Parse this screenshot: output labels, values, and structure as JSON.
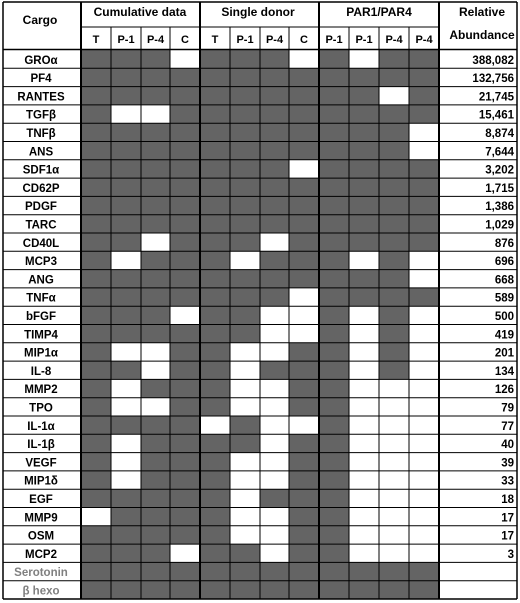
{
  "headers": {
    "cargo": "Cargo",
    "groups": [
      "Cumulative data",
      "Single donor",
      "PAR1/PAR4"
    ],
    "relative": "Relative",
    "abundance": "Abundance",
    "subcolumns": [
      "T",
      "P-1",
      "P-4",
      "C",
      "T",
      "P-1",
      "P-4",
      "C",
      "P-1",
      "P-1",
      "P-4",
      "P-4"
    ]
  },
  "colors": {
    "filled": "#646464",
    "empty": "#ffffff",
    "line": "#000000",
    "grey_text": "#808080"
  },
  "rows": [
    {
      "name": "GROα",
      "cells": "111011101011",
      "abundance": "388,082"
    },
    {
      "name": "PF4",
      "cells": "111111111111",
      "abundance": "132,756"
    },
    {
      "name": "RANTES",
      "cells": "111111111101",
      "abundance": "21,745"
    },
    {
      "name": "TGFβ",
      "cells": "100111111111",
      "abundance": "15,461"
    },
    {
      "name": "TNFβ",
      "cells": "111111111110",
      "abundance": "8,874"
    },
    {
      "name": "ANS",
      "cells": "111111111110",
      "abundance": "7,644"
    },
    {
      "name": "SDF1α",
      "cells": "111111101111",
      "abundance": "3,202"
    },
    {
      "name": "CD62P",
      "cells": "111111111111",
      "abundance": "1,715"
    },
    {
      "name": "PDGF",
      "cells": "111111111111",
      "abundance": "1,386"
    },
    {
      "name": "TARC",
      "cells": "111111111111",
      "abundance": "1,029"
    },
    {
      "name": "CD40L",
      "cells": "110111011111",
      "abundance": "876"
    },
    {
      "name": "MCP3",
      "cells": "101110111010",
      "abundance": "696"
    },
    {
      "name": "ANG",
      "cells": "111111111110",
      "abundance": "668"
    },
    {
      "name": "TNFα",
      "cells": "111111101111",
      "abundance": "589"
    },
    {
      "name": "bFGF",
      "cells": "111011001010",
      "abundance": "500"
    },
    {
      "name": "TIMP4",
      "cells": "111111001010",
      "abundance": "419"
    },
    {
      "name": "MIP1α",
      "cells": "100110011010",
      "abundance": "201"
    },
    {
      "name": "IL-8",
      "cells": "110110111010",
      "abundance": "134"
    },
    {
      "name": "MMP2",
      "cells": "101110011000",
      "abundance": "126"
    },
    {
      "name": "TPO",
      "cells": "100110011000",
      "abundance": "79"
    },
    {
      "name": "IL-1α",
      "cells": "111101001000",
      "abundance": "77"
    },
    {
      "name": "IL-1β",
      "cells": "101111011000",
      "abundance": "40"
    },
    {
      "name": "VEGF",
      "cells": "101110011000",
      "abundance": "39"
    },
    {
      "name": "MIP1δ",
      "cells": "101110011000",
      "abundance": "33"
    },
    {
      "name": "EGF",
      "cells": "111110111000",
      "abundance": "18"
    },
    {
      "name": "MMP9",
      "cells": "011110011000",
      "abundance": "17"
    },
    {
      "name": "OSM",
      "cells": "111110011000",
      "abundance": "17"
    },
    {
      "name": "MCP2",
      "cells": "111011011000",
      "abundance": "3"
    },
    {
      "name": "Serotonin",
      "cells": "111111111111",
      "abundance": "",
      "grey": true
    },
    {
      "name": "β hexo",
      "cells": "111111111111",
      "abundance": "",
      "grey": true
    }
  ]
}
